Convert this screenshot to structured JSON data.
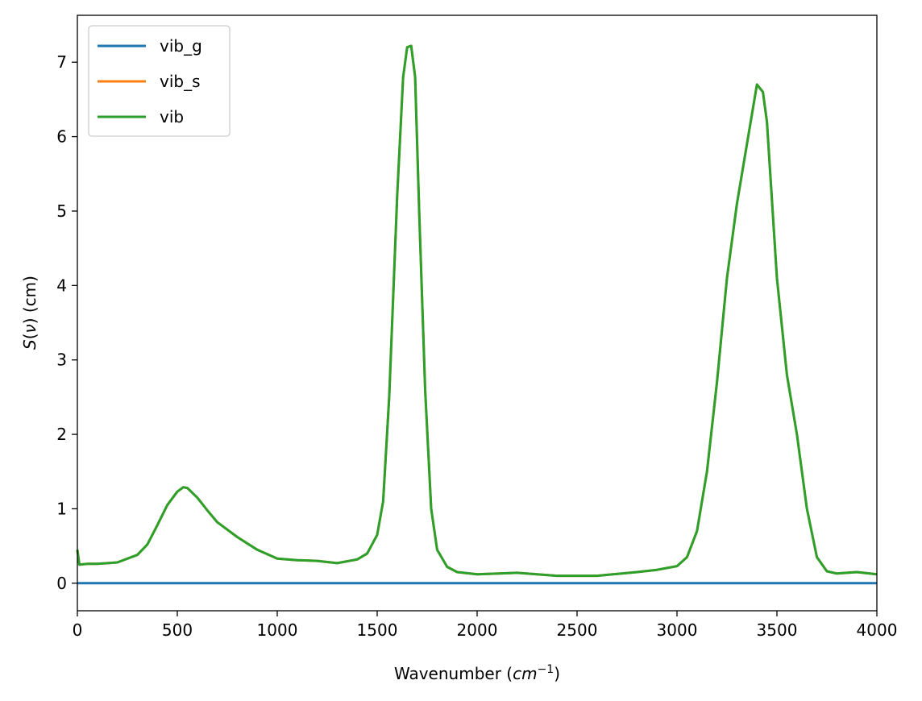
{
  "chart_data": {
    "type": "line",
    "title": "",
    "xlabel": {
      "main": "Wavenumber (",
      "var": "cm",
      "sup": "−1",
      "close": ")"
    },
    "ylabel": {
      "var": "S",
      "open": "(",
      "nu": "ν",
      "close": ")",
      "unit": " (cm)"
    },
    "xlim": [
      0,
      4000
    ],
    "ylim": [
      -0.37,
      7.63
    ],
    "xticks": [
      0,
      500,
      1000,
      1500,
      2000,
      2500,
      3000,
      3500,
      4000
    ],
    "yticks": [
      0,
      1,
      2,
      3,
      4,
      5,
      6,
      7
    ],
    "grid": false,
    "legend_position": "upper-left",
    "series": [
      {
        "name": "vib_g",
        "color": "#1f77b4",
        "x": [
          0,
          4000
        ],
        "y": [
          0.0,
          0.0
        ]
      },
      {
        "name": "vib_s",
        "color": "#ff7f0e",
        "x": [
          0,
          10,
          50,
          100,
          200,
          300,
          350,
          400,
          450,
          500,
          530,
          550,
          600,
          650,
          700,
          800,
          900,
          1000,
          1100,
          1200,
          1300,
          1400,
          1450,
          1500,
          1530,
          1560,
          1600,
          1630,
          1650,
          1670,
          1690,
          1710,
          1740,
          1770,
          1800,
          1850,
          1900,
          2000,
          2200,
          2400,
          2600,
          2800,
          2900,
          3000,
          3050,
          3100,
          3150,
          3200,
          3250,
          3300,
          3350,
          3400,
          3430,
          3450,
          3500,
          3550,
          3600,
          3650,
          3700,
          3750,
          3800,
          3900,
          4000
        ],
        "y": [
          0.45,
          0.25,
          0.26,
          0.26,
          0.28,
          0.38,
          0.52,
          0.78,
          1.05,
          1.23,
          1.29,
          1.28,
          1.15,
          0.98,
          0.82,
          0.62,
          0.45,
          0.33,
          0.31,
          0.3,
          0.27,
          0.32,
          0.4,
          0.65,
          1.1,
          2.5,
          5.2,
          6.8,
          7.2,
          7.22,
          6.8,
          5.0,
          2.6,
          1.0,
          0.45,
          0.22,
          0.15,
          0.12,
          0.14,
          0.1,
          0.1,
          0.15,
          0.18,
          0.23,
          0.35,
          0.7,
          1.5,
          2.7,
          4.1,
          5.1,
          5.9,
          6.7,
          6.6,
          6.2,
          4.1,
          2.8,
          2.0,
          1.0,
          0.35,
          0.16,
          0.13,
          0.15,
          0.12
        ]
      },
      {
        "name": "vib",
        "color": "#2ca02c",
        "x": [
          0,
          10,
          50,
          100,
          200,
          300,
          350,
          400,
          450,
          500,
          530,
          550,
          600,
          650,
          700,
          800,
          900,
          1000,
          1100,
          1200,
          1300,
          1400,
          1450,
          1500,
          1530,
          1560,
          1600,
          1630,
          1650,
          1670,
          1690,
          1710,
          1740,
          1770,
          1800,
          1850,
          1900,
          2000,
          2200,
          2400,
          2600,
          2800,
          2900,
          3000,
          3050,
          3100,
          3150,
          3200,
          3250,
          3300,
          3350,
          3400,
          3430,
          3450,
          3500,
          3550,
          3600,
          3650,
          3700,
          3750,
          3800,
          3900,
          4000
        ],
        "y": [
          0.45,
          0.25,
          0.26,
          0.26,
          0.28,
          0.38,
          0.52,
          0.78,
          1.05,
          1.23,
          1.29,
          1.28,
          1.15,
          0.98,
          0.82,
          0.62,
          0.45,
          0.33,
          0.31,
          0.3,
          0.27,
          0.32,
          0.4,
          0.65,
          1.1,
          2.5,
          5.2,
          6.8,
          7.2,
          7.22,
          6.8,
          5.0,
          2.6,
          1.0,
          0.45,
          0.22,
          0.15,
          0.12,
          0.14,
          0.1,
          0.1,
          0.15,
          0.18,
          0.23,
          0.35,
          0.7,
          1.5,
          2.7,
          4.1,
          5.1,
          5.9,
          6.7,
          6.6,
          6.2,
          4.1,
          2.8,
          2.0,
          1.0,
          0.35,
          0.16,
          0.13,
          0.15,
          0.12
        ]
      }
    ]
  }
}
